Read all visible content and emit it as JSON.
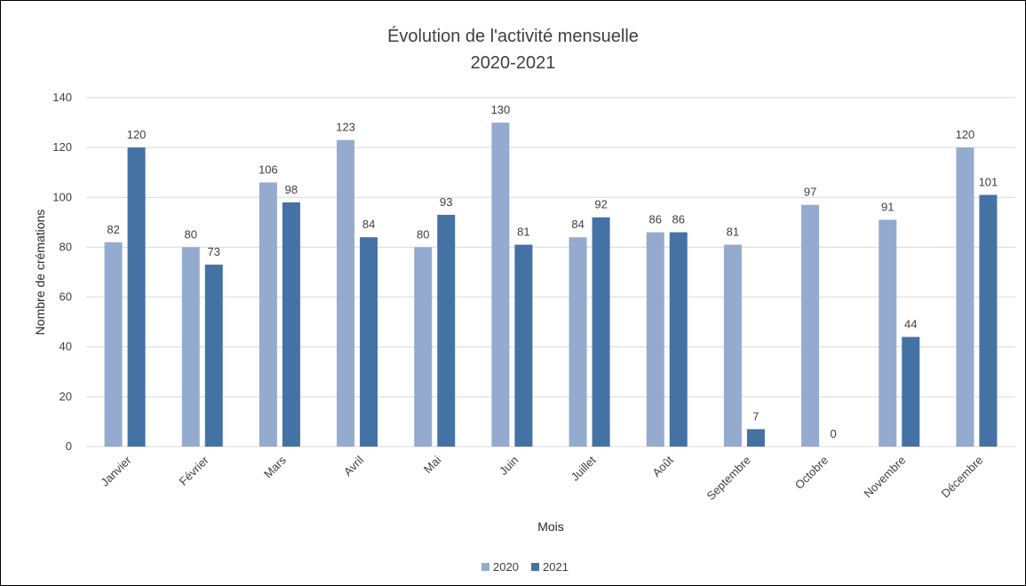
{
  "chart_data": {
    "type": "bar",
    "title": "Évolution de l'activité mensuelle",
    "subtitle": "2020-2021",
    "xlabel": "Mois",
    "ylabel": "Nombre de crémations",
    "ylim": [
      0,
      140
    ],
    "yticks": [
      0,
      20,
      40,
      60,
      80,
      100,
      120,
      140
    ],
    "grid": true,
    "legend": "bottom",
    "categories": [
      "Janvier",
      "Février",
      "Mars",
      "Avril",
      "Mai",
      "Juin",
      "Juillet",
      "Août",
      "Septembre",
      "Octobre",
      "Novembre",
      "Décembre"
    ],
    "series": [
      {
        "name": "2020",
        "color": "#95AACF",
        "values": [
          82,
          80,
          106,
          123,
          80,
          130,
          84,
          86,
          81,
          97,
          91,
          120
        ]
      },
      {
        "name": "2021",
        "color": "#4472A4",
        "values": [
          120,
          73,
          98,
          84,
          93,
          81,
          92,
          86,
          7,
          0,
          44,
          101
        ]
      }
    ]
  }
}
